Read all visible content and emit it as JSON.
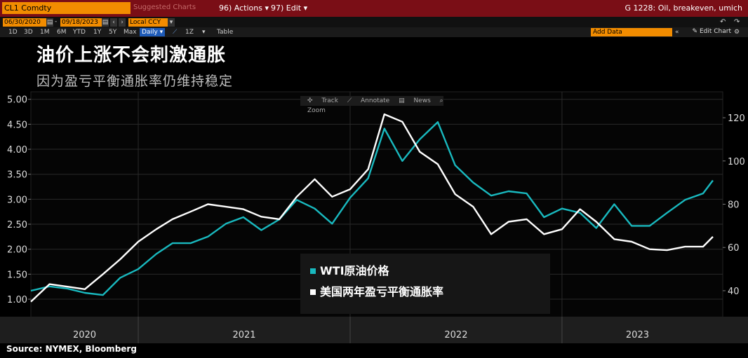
{
  "toolbar": {
    "ticker": "CL1 Comdty",
    "suggested_charts": "Suggested Charts",
    "actions": "96) Actions",
    "edit": "97) Edit",
    "chart_name": "G 1228: Oil, breakeven, umich",
    "date_from": "06/30/2020",
    "date_to": "09/18/2023",
    "currency": "Local CCY",
    "periods": [
      "1D",
      "3D",
      "1M",
      "6M",
      "YTD",
      "1Y",
      "5Y",
      "Max"
    ],
    "frequency": "Daily",
    "interval": "1Z",
    "table": "Table",
    "add_data": "Add Data",
    "edit_chart": "Edit Chart"
  },
  "chart_tools": {
    "track": "Track",
    "annotate": "Annotate",
    "news": "News",
    "zoom": "Zoom"
  },
  "colors": {
    "oil": "#19b9bf",
    "breakeven": "#ffffff",
    "background": "#000000",
    "grid": "#2a2a2a"
  },
  "chart_data": {
    "type": "line",
    "title": "油价上涨不会刺激通胀",
    "subtitle": "因为盈亏平衡通胀率仍维持稳定",
    "x_axis": {
      "ticks": [
        "2020",
        "2021",
        "2022",
        "2023"
      ],
      "range": [
        "2020-06-30",
        "2023-09-18"
      ]
    },
    "y_left": {
      "ticks": [
        "1.00",
        "1.50",
        "2.00",
        "2.50",
        "3.00",
        "3.50",
        "4.00",
        "4.50",
        "5.00"
      ],
      "range": [
        0.65,
        5.15
      ]
    },
    "y_right": {
      "ticks": [
        "40",
        "60",
        "80",
        "100",
        "120"
      ],
      "range": [
        28,
        132
      ]
    },
    "legend": {
      "position": "bottom-center"
    },
    "series": [
      {
        "name": "WTI原油价格",
        "axis": "right",
        "color": "#19b9bf",
        "points": [
          [
            "2020-06-30",
            40
          ],
          [
            "2020-08-01",
            42
          ],
          [
            "2020-09-01",
            41
          ],
          [
            "2020-10-01",
            39
          ],
          [
            "2020-11-01",
            38
          ],
          [
            "2020-12-01",
            46
          ],
          [
            "2021-01-01",
            50
          ],
          [
            "2021-02-01",
            57
          ],
          [
            "2021-03-01",
            62
          ],
          [
            "2021-04-01",
            62
          ],
          [
            "2021-05-01",
            65
          ],
          [
            "2021-06-01",
            71
          ],
          [
            "2021-07-01",
            74
          ],
          [
            "2021-08-01",
            68
          ],
          [
            "2021-09-01",
            73
          ],
          [
            "2021-10-01",
            82
          ],
          [
            "2021-11-01",
            78
          ],
          [
            "2021-12-01",
            71
          ],
          [
            "2022-01-01",
            83
          ],
          [
            "2022-02-01",
            92
          ],
          [
            "2022-03-01",
            115
          ],
          [
            "2022-04-01",
            100
          ],
          [
            "2022-05-01",
            110
          ],
          [
            "2022-06-01",
            118
          ],
          [
            "2022-07-01",
            98
          ],
          [
            "2022-08-01",
            90
          ],
          [
            "2022-09-01",
            84
          ],
          [
            "2022-10-01",
            86
          ],
          [
            "2022-11-01",
            85
          ],
          [
            "2022-12-01",
            74
          ],
          [
            "2023-01-01",
            78
          ],
          [
            "2023-02-01",
            76
          ],
          [
            "2023-03-01",
            69
          ],
          [
            "2023-04-01",
            80
          ],
          [
            "2023-05-01",
            70
          ],
          [
            "2023-06-01",
            70
          ],
          [
            "2023-07-01",
            76
          ],
          [
            "2023-08-01",
            82
          ],
          [
            "2023-09-01",
            85
          ],
          [
            "2023-09-18",
            91
          ]
        ]
      },
      {
        "name": "美国两年盈亏平衡通胀率",
        "axis": "left",
        "color": "#ffffff",
        "points": [
          [
            "2020-06-30",
            0.95
          ],
          [
            "2020-08-01",
            1.3
          ],
          [
            "2020-09-01",
            1.25
          ],
          [
            "2020-10-01",
            1.2
          ],
          [
            "2020-11-01",
            1.5
          ],
          [
            "2020-12-01",
            1.8
          ],
          [
            "2021-01-01",
            2.15
          ],
          [
            "2021-02-01",
            2.4
          ],
          [
            "2021-03-01",
            2.6
          ],
          [
            "2021-04-01",
            2.75
          ],
          [
            "2021-05-01",
            2.9
          ],
          [
            "2021-06-01",
            2.85
          ],
          [
            "2021-07-01",
            2.8
          ],
          [
            "2021-08-01",
            2.65
          ],
          [
            "2021-09-01",
            2.6
          ],
          [
            "2021-10-01",
            3.05
          ],
          [
            "2021-11-01",
            3.4
          ],
          [
            "2021-12-01",
            3.05
          ],
          [
            "2022-01-01",
            3.2
          ],
          [
            "2022-02-01",
            3.6
          ],
          [
            "2022-03-01",
            4.7
          ],
          [
            "2022-04-01",
            4.55
          ],
          [
            "2022-05-01",
            3.95
          ],
          [
            "2022-06-01",
            3.7
          ],
          [
            "2022-07-01",
            3.1
          ],
          [
            "2022-08-01",
            2.85
          ],
          [
            "2022-09-01",
            2.3
          ],
          [
            "2022-10-01",
            2.55
          ],
          [
            "2022-11-01",
            2.6
          ],
          [
            "2022-12-01",
            2.3
          ],
          [
            "2023-01-01",
            2.4
          ],
          [
            "2023-02-01",
            2.8
          ],
          [
            "2023-03-01",
            2.55
          ],
          [
            "2023-04-01",
            2.2
          ],
          [
            "2023-05-01",
            2.15
          ],
          [
            "2023-06-01",
            2.0
          ],
          [
            "2023-07-01",
            1.98
          ],
          [
            "2023-08-01",
            2.05
          ],
          [
            "2023-09-01",
            2.05
          ],
          [
            "2023-09-18",
            2.25
          ]
        ]
      }
    ]
  },
  "source": "Source: NYMEX, Bloomberg"
}
